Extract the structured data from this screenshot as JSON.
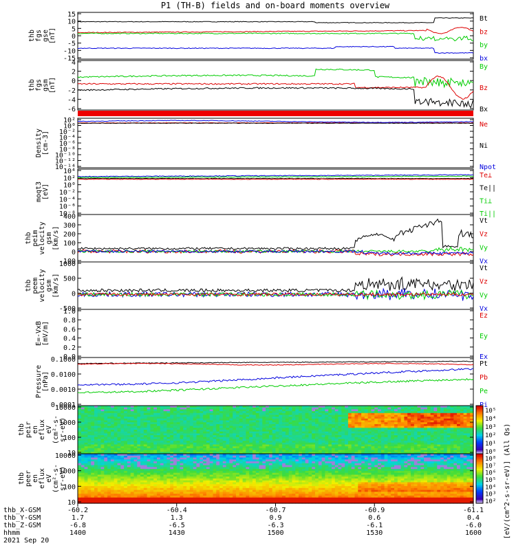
{
  "title": "P1 (TH-B) fields and on-board moments overview",
  "panels": [
    {
      "id": "fgs_gse",
      "ylabel": [
        "thb",
        "fgs",
        "gse",
        "[nT]"
      ],
      "ticks": [
        "15",
        "10",
        "5",
        "0",
        "-5",
        "-10",
        "-15"
      ],
      "legend": [
        {
          "text": "Bt",
          "color": "#000000"
        },
        {
          "text": "bz",
          "color": "#dd0000"
        },
        {
          "text": "by",
          "color": "#00cc00"
        },
        {
          "text": "bx",
          "color": "#0000dd"
        }
      ]
    },
    {
      "id": "fgs_gsm",
      "ylabel": [
        "thb",
        "fgs",
        "gsm",
        "[nT]"
      ],
      "ticks": [
        "4",
        "2",
        "0",
        "-2",
        "-4",
        "-6"
      ],
      "legend": [
        {
          "text": "By",
          "color": "#00cc00"
        },
        {
          "text": "Bz",
          "color": "#dd0000"
        },
        {
          "text": "Bx",
          "color": "#000000"
        }
      ]
    },
    {
      "id": "density",
      "ylabel": [
        "Density",
        "[cm-3]"
      ],
      "ticks": [
        "10²",
        "10⁰",
        "10⁻²",
        "10⁻⁴",
        "10⁻⁶",
        "10⁻⁸",
        "10⁻¹⁰",
        "10⁻¹²",
        "10⁻¹⁴"
      ],
      "legend": [
        {
          "text": "Ne",
          "color": "#dd0000"
        },
        {
          "text": "Ni",
          "color": "#000000"
        },
        {
          "text": "Npot",
          "color": "#0000dd"
        }
      ]
    },
    {
      "id": "temp",
      "ylabel": [
        "moqt3",
        "[eV]"
      ],
      "ticks": [
        "10⁴",
        "10²",
        "10⁰",
        "10⁻²",
        "10⁻⁴",
        "10⁻⁶",
        "10⁻⁸"
      ],
      "legend": [
        {
          "text": "Te⊥",
          "color": "#dd0000"
        },
        {
          "text": "Te||",
          "color": "#000000"
        },
        {
          "text": "Ti⊥",
          "color": "#00cc00"
        },
        {
          "text": "Ti||",
          "color": "#00cc00"
        }
      ]
    },
    {
      "id": "peim_v",
      "ylabel": [
        "thb",
        "peim",
        "velocity",
        "gsm",
        "[km/s]"
      ],
      "ticks": [
        "400",
        "300",
        "200",
        "100",
        "0",
        "-100"
      ],
      "legend": [
        {
          "text": "Vt",
          "color": "#000000"
        },
        {
          "text": "Vz",
          "color": "#dd0000"
        },
        {
          "text": "Vy",
          "color": "#00cc00"
        },
        {
          "text": "Vx",
          "color": "#0000dd"
        }
      ]
    },
    {
      "id": "peem_v",
      "ylabel": [
        "thb",
        "peem",
        "velocity",
        "gsm",
        "[km/s]"
      ],
      "ticks": [
        "1000",
        "500",
        "0",
        "-500"
      ],
      "legend": [
        {
          "text": "Vt",
          "color": "#000000"
        },
        {
          "text": "Vz",
          "color": "#dd0000"
        },
        {
          "text": "Vy",
          "color": "#00cc00"
        },
        {
          "text": "Vx",
          "color": "#0000dd"
        }
      ]
    },
    {
      "id": "efield",
      "ylabel": [
        "E=-VxB",
        "[mV/m]"
      ],
      "ticks": [
        "1.0",
        "0.8",
        "0.6",
        "0.4",
        "0.2",
        "0.0"
      ],
      "legend": [
        {
          "text": "Ez",
          "color": "#dd0000"
        },
        {
          "text": "Ey",
          "color": "#00cc00"
        },
        {
          "text": "Ex",
          "color": "#0000dd"
        }
      ]
    },
    {
      "id": "pressure",
      "ylabel": [
        "Pressure",
        "[nPa]"
      ],
      "ticks": [
        "0.1000",
        "0.0100",
        "0.0010",
        "0.0001"
      ],
      "legend": [
        {
          "text": "Pt",
          "color": "#000000"
        },
        {
          "text": "Pb",
          "color": "#dd0000"
        },
        {
          "text": "Pe",
          "color": "#00cc00"
        },
        {
          "text": "Pi",
          "color": "#0000dd"
        }
      ]
    },
    {
      "id": "peir",
      "ylabel": [
        "thb",
        "peir",
        "en",
        "eflux",
        "eV",
        "(cm²-s-",
        "sr-eV)"
      ],
      "ticks": [
        "10000",
        "1000",
        "100",
        "10"
      ],
      "cbar": [
        "10⁵",
        "10⁴",
        "10³",
        "10²",
        "10¹",
        "10⁰"
      ]
    },
    {
      "id": "peer",
      "ylabel": [
        "thb",
        "peer",
        "en",
        "eflux",
        "eV",
        "(cm²-s-",
        "sr-eV)"
      ],
      "ticks": [
        "10000",
        "1000",
        "100",
        "10"
      ],
      "cbar": [
        "10⁸",
        "10⁷",
        "10⁶",
        "10⁵",
        "10⁴",
        "10³",
        "10²"
      ]
    }
  ],
  "colorbar_label": "[eV/(cm^2-s-sr-eV)]",
  "colorbar_label2": "(All Qs)",
  "xaxis": {
    "rows": [
      {
        "name": "thb_X-GSM",
        "values": [
          "-60.2",
          "-60.4",
          "-60.7",
          "-60.9",
          "-61.1"
        ]
      },
      {
        "name": "thb_Y-GSM",
        "values": [
          "1.7",
          "1.3",
          "0.9",
          "0.6",
          "0.4"
        ]
      },
      {
        "name": "thb_Z-GSM",
        "values": [
          "-6.8",
          "-6.5",
          "-6.3",
          "-6.1",
          "-6.0"
        ]
      },
      {
        "name": "hhmm",
        "values": [
          "1400",
          "1430",
          "1500",
          "1530",
          "1600"
        ]
      }
    ],
    "date": "2021 Sep 20"
  },
  "chart_data": {
    "type": "line",
    "title": "P1 (TH-B) fields and on-board moments overview",
    "x_label": "hhmm",
    "x": [
      "1400",
      "1430",
      "1500",
      "1530",
      "1600"
    ],
    "series": [
      {
        "name": "Bt",
        "panel": "fgs_gse",
        "values": [
          9,
          8.5,
          9,
          9.5,
          12
        ]
      },
      {
        "name": "bz",
        "panel": "fgs_gse",
        "values": [
          2,
          2,
          3,
          3,
          4
        ]
      },
      {
        "name": "by",
        "panel": "fgs_gse",
        "values": [
          1,
          1.5,
          2,
          0,
          -2
        ]
      },
      {
        "name": "bx",
        "panel": "fgs_gse",
        "values": [
          -8,
          -8,
          -8,
          -7,
          -10
        ]
      },
      {
        "name": "By",
        "panel": "fgs_gsm",
        "values": [
          0.5,
          0.5,
          0,
          1,
          -1
        ]
      },
      {
        "name": "Bz",
        "panel": "fgs_gsm",
        "values": [
          -1,
          -1,
          -1,
          -2,
          -2
        ]
      },
      {
        "name": "Bx",
        "panel": "fgs_gsm",
        "values": [
          -2.5,
          -2.5,
          -2,
          -3,
          -5
        ]
      },
      {
        "name": "Vt",
        "panel": "peim_v",
        "values": [
          20,
          30,
          50,
          250,
          200
        ]
      },
      {
        "name": "Vz",
        "panel": "peim_v",
        "values": [
          0,
          10,
          -10,
          -20,
          -30
        ]
      },
      {
        "name": "Vy",
        "panel": "peim_v",
        "values": [
          0,
          5,
          10,
          -10,
          50
        ]
      },
      {
        "name": "Vx",
        "panel": "peim_v",
        "values": [
          0,
          0,
          -5,
          -20,
          -40
        ]
      },
      {
        "name": "Pt",
        "panel": "pressure",
        "values": [
          0.05,
          0.05,
          0.05,
          0.06,
          0.07
        ]
      },
      {
        "name": "Pb",
        "panel": "pressure",
        "values": [
          0.05,
          0.05,
          0.05,
          0.05,
          0.05
        ]
      },
      {
        "name": "Pe",
        "panel": "pressure",
        "values": [
          0.0007,
          0.0009,
          0.0012,
          0.002,
          0.004
        ]
      },
      {
        "name": "Pi",
        "panel": "pressure",
        "values": [
          0.002,
          0.003,
          0.004,
          0.02,
          0.02
        ]
      }
    ]
  }
}
